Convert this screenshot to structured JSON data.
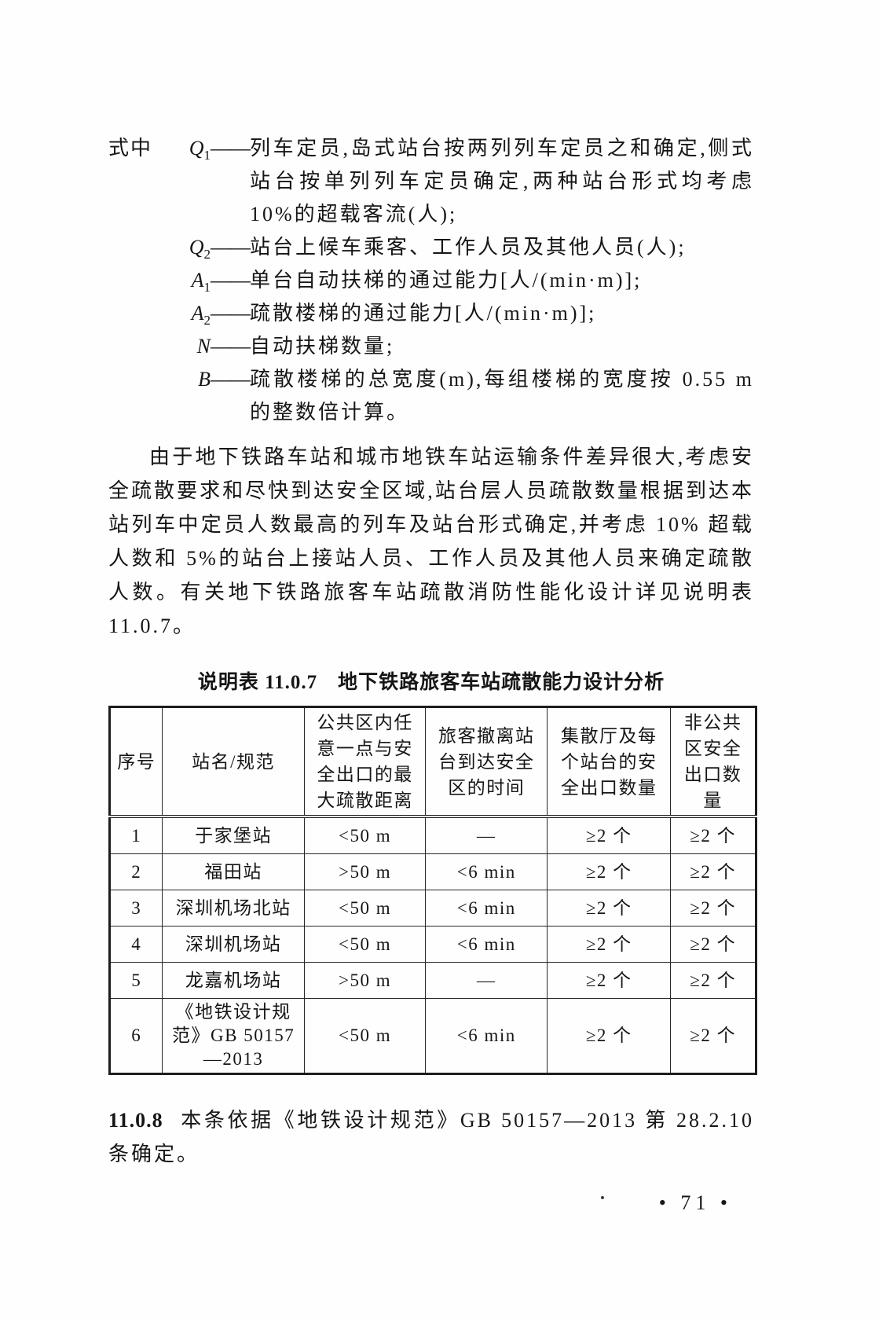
{
  "formula_definitions": {
    "lead": "式中",
    "dash": "——",
    "items": [
      {
        "symbol": "Q",
        "subscript": "1",
        "description": "列车定员,岛式站台按两列列车定员之和确定,侧式站台按单列列车定员确定,两种站台形式均考虑 10%的超载客流(人);"
      },
      {
        "symbol": "Q",
        "subscript": "2",
        "description": "站台上候车乘客、工作人员及其他人员(人);"
      },
      {
        "symbol": "A",
        "subscript": "1",
        "description": "单台自动扶梯的通过能力[人/(min·m)];"
      },
      {
        "symbol": "A",
        "subscript": "2",
        "description": "疏散楼梯的通过能力[人/(min·m)];"
      },
      {
        "symbol": "N",
        "subscript": "",
        "description": "自动扶梯数量;"
      },
      {
        "symbol": "B",
        "subscript": "",
        "description": "疏散楼梯的总宽度(m),每组楼梯的宽度按 0.55 m 的整数倍计算。"
      }
    ]
  },
  "commentary_paragraph": "由于地下铁路车站和城市地铁车站运输条件差异很大,考虑安全疏散要求和尽快到达安全区域,站台层人员疏散数量根据到达本站列车中定员人数最高的列车及站台形式确定,并考虑 10% 超载人数和 5%的站台上接站人员、工作人员及其他人员来确定疏散人数。有关地下铁路旅客车站疏散消防性能化设计详见说明表 11.0.7。",
  "table": {
    "caption": "说明表 11.0.7　地下铁路旅客车站疏散能力设计分析",
    "headers": [
      "序号",
      "站名/规范",
      "公共区内任意一点与安全出口的最大疏散距离",
      "旅客撤离站台到达安全区的时间",
      "集散厅及每个站台的安全出口数量",
      "非公共区安全出口数量"
    ],
    "rows": [
      [
        "1",
        "于家堡站",
        "<50 m",
        "—",
        "≥2 个",
        "≥2 个"
      ],
      [
        "2",
        "福田站",
        ">50 m",
        "<6 min",
        "≥2 个",
        "≥2 个"
      ],
      [
        "3",
        "深圳机场北站",
        "<50 m",
        "<6 min",
        "≥2 个",
        "≥2 个"
      ],
      [
        "4",
        "深圳机场站",
        "<50 m",
        "<6 min",
        "≥2 个",
        "≥2 个"
      ],
      [
        "5",
        "龙嘉机场站",
        ">50 m",
        "—",
        "≥2 个",
        "≥2 个"
      ],
      [
        "6",
        "《地铁设计规范》GB 50157—2013",
        "<50 m",
        "<6 min",
        "≥2 个",
        "≥2 个"
      ]
    ]
  },
  "closing_clause": {
    "number": "11.0.8",
    "text": "本条依据《地铁设计规范》GB 50157—2013 第 28.2.10 条确定。"
  },
  "page": {
    "number_display": "• 71 •"
  }
}
